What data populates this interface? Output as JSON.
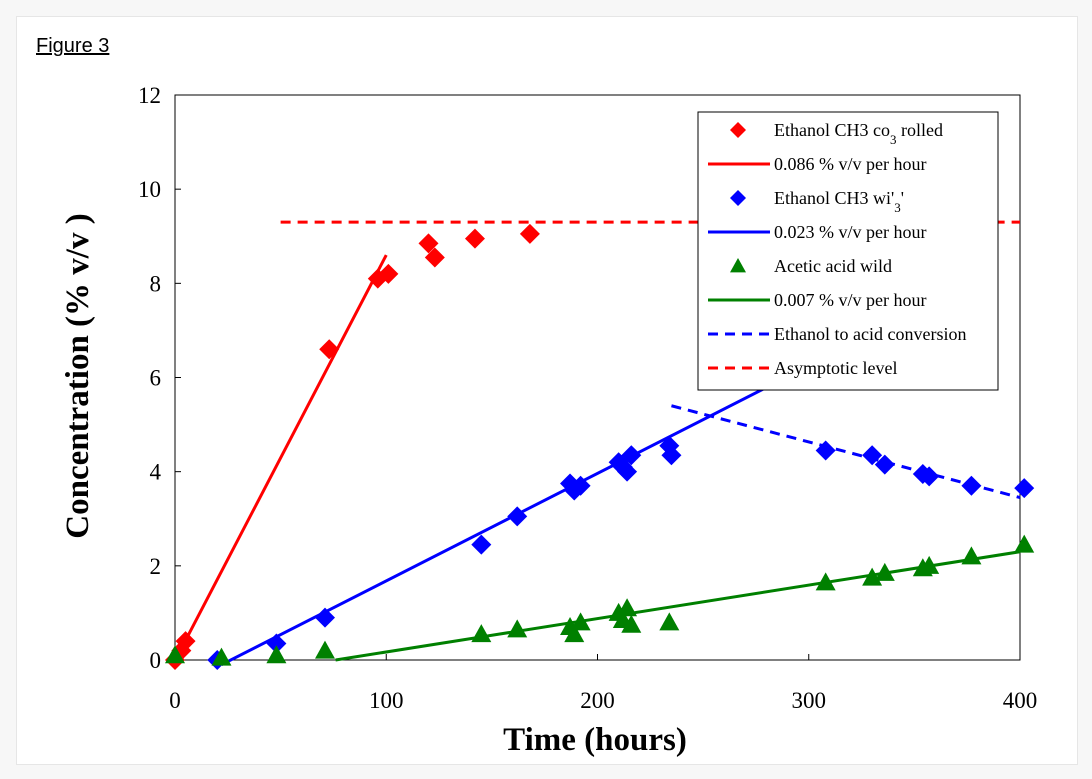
{
  "figure_label": "Figure 3",
  "chart_data": {
    "type": "scatter",
    "xlabel": "Time (hours)",
    "ylabel": "Concentration (% v/v )",
    "xlim": [
      0,
      400
    ],
    "ylim": [
      0,
      12
    ],
    "x_ticks": [
      0,
      100,
      200,
      300,
      400
    ],
    "y_ticks": [
      0,
      2,
      4,
      6,
      8,
      10,
      12
    ],
    "grid": false,
    "legend_position": "top-right",
    "colors": {
      "red": "#ff0000",
      "blue": "#0000ff",
      "green": "#008000"
    },
    "series": [
      {
        "name": "Ethanol CH3 co3 rolled",
        "legend_label": "Ethanol CH3 co",
        "legend_sub": "3",
        "legend_suffix": " rolled",
        "marker": "diamond",
        "color": "#ff0000",
        "points": [
          [
            0,
            0
          ],
          [
            3,
            0.2
          ],
          [
            5,
            0.4
          ],
          [
            73,
            6.6
          ],
          [
            96,
            8.1
          ],
          [
            101,
            8.2
          ],
          [
            120,
            8.85
          ],
          [
            123,
            8.55
          ],
          [
            142,
            8.95
          ],
          [
            168,
            9.05
          ]
        ]
      },
      {
        "name": "0.086 % v/v per hour",
        "legend_label": "0.086 % v/v per hour",
        "line": "solid",
        "color": "#ff0000",
        "points": [
          [
            -1,
            -0.1
          ],
          [
            100,
            8.6
          ]
        ]
      },
      {
        "name": "Ethanol CH3 wi'3'",
        "legend_label": "Ethanol CH3 wi'",
        "legend_sub": "3",
        "legend_suffix": "'",
        "marker": "diamond",
        "color": "#0000ff",
        "points": [
          [
            20,
            0
          ],
          [
            48,
            0.35
          ],
          [
            71,
            0.9
          ],
          [
            145,
            2.45
          ],
          [
            162,
            3.05
          ],
          [
            187,
            3.75
          ],
          [
            189,
            3.6
          ],
          [
            192,
            3.7
          ],
          [
            210,
            4.2
          ],
          [
            212,
            4.1
          ],
          [
            214,
            4.0
          ],
          [
            216,
            4.35
          ],
          [
            234,
            4.55
          ],
          [
            235,
            4.35
          ],
          [
            308,
            4.45
          ],
          [
            330,
            4.35
          ],
          [
            336,
            4.15
          ],
          [
            354,
            3.95
          ],
          [
            357,
            3.9
          ],
          [
            377,
            3.7
          ],
          [
            402,
            3.65
          ]
        ]
      },
      {
        "name": "0.023 % v/v per hour",
        "legend_label": "0.023 % v/v per hour",
        "line": "solid",
        "color": "#0000ff",
        "points": [
          [
            22,
            -0.1
          ],
          [
            298,
            6.2
          ]
        ]
      },
      {
        "name": "Acetic acid wild",
        "legend_label": "Acetic acid wild",
        "marker": "triangle",
        "color": "#008000",
        "points": [
          [
            0,
            0.1
          ],
          [
            22,
            0.05
          ],
          [
            48,
            0.1
          ],
          [
            71,
            0.2
          ],
          [
            145,
            0.55
          ],
          [
            162,
            0.65
          ],
          [
            187,
            0.7
          ],
          [
            189,
            0.55
          ],
          [
            192,
            0.8
          ],
          [
            210,
            1.0
          ],
          [
            212,
            0.85
          ],
          [
            214,
            1.1
          ],
          [
            216,
            0.75
          ],
          [
            234,
            0.8
          ],
          [
            308,
            1.65
          ],
          [
            330,
            1.75
          ],
          [
            336,
            1.85
          ],
          [
            354,
            1.95
          ],
          [
            357,
            2.0
          ],
          [
            377,
            2.2
          ],
          [
            402,
            2.45
          ]
        ]
      },
      {
        "name": "0.007 % v/v per hour",
        "legend_label": "0.007 % v/v per hour",
        "line": "solid",
        "color": "#008000",
        "points": [
          [
            76,
            0
          ],
          [
            400,
            2.3
          ]
        ]
      },
      {
        "name": "Ethanol to acid conversion",
        "legend_label": "Ethanol to acid conversion",
        "line": "dashed",
        "color": "#0000ff",
        "points": [
          [
            235,
            5.4
          ],
          [
            400,
            3.45
          ]
        ]
      },
      {
        "name": "Asymptotic level",
        "legend_label": "Asymptotic level",
        "line": "dashed",
        "color": "#ff0000",
        "points": [
          [
            50,
            9.3
          ],
          [
            400,
            9.3
          ]
        ]
      }
    ]
  }
}
